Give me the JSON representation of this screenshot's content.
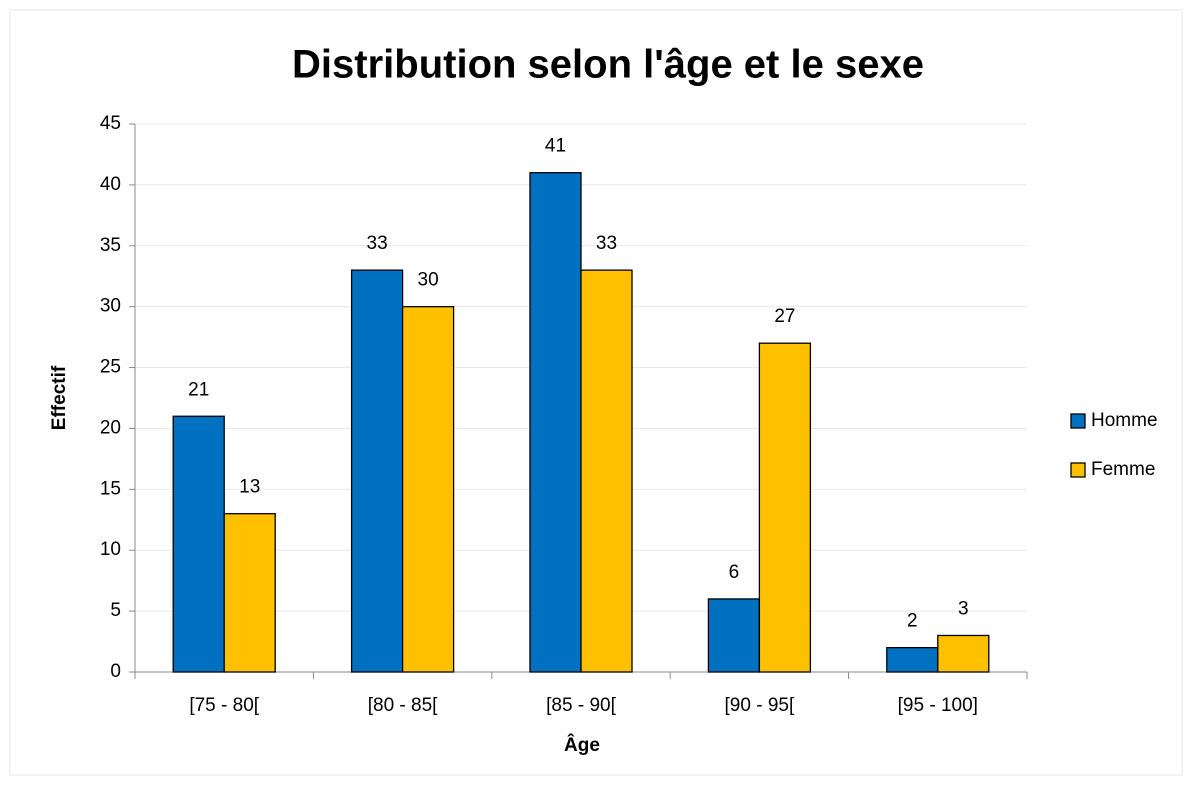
{
  "chart_data": {
    "type": "bar",
    "title": "Distribution selon l'âge et le sexe",
    "x_label": "Âge",
    "y_label": "Effectif",
    "categories": [
      "[75 - 80[",
      "[80 - 85[",
      "[85 - 90[",
      "[90 - 95[",
      "[95 - 100]"
    ],
    "series": [
      {
        "name": "Homme",
        "color": "#0070c0",
        "values": [
          21,
          33,
          41,
          6,
          2
        ]
      },
      {
        "name": "Femme",
        "color": "#ffc000",
        "values": [
          13,
          30,
          33,
          27,
          3
        ]
      }
    ],
    "ylim": [
      0,
      45
    ],
    "yticks": [
      0,
      5,
      10,
      15,
      20,
      25,
      30,
      35,
      40,
      45
    ],
    "grid": true,
    "legend": "right"
  }
}
